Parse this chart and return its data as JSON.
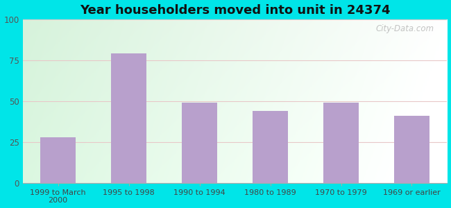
{
  "title": "Year householders moved into unit in 24374",
  "categories": [
    "1999 to March\n2000",
    "1995 to 1998",
    "1990 to 1994",
    "1980 to 1989",
    "1970 to 1979",
    "1969 or earlier"
  ],
  "values": [
    28,
    79,
    49,
    44,
    49,
    41
  ],
  "bar_color": "#b8a0cc",
  "ylim": [
    0,
    100
  ],
  "yticks": [
    0,
    25,
    50,
    75,
    100
  ],
  "background_outer": "#00e5e8",
  "watermark": "City-Data.com",
  "title_fontsize": 13,
  "grid_color": "#dddddd",
  "inner_bg_left": "#d6eddc",
  "inner_bg_right": "#f0f8f0"
}
